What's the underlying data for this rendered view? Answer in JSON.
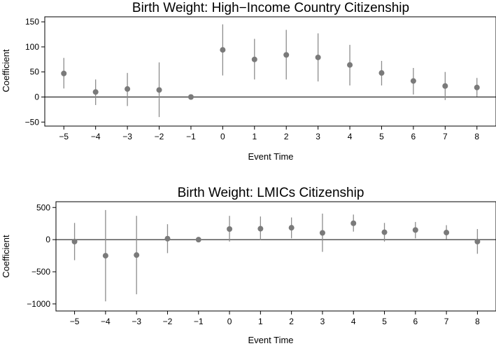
{
  "chart_data": [
    {
      "type": "scatter",
      "title": "Birth Weight: High−Income Country Citizenship",
      "xlabel": "Event Time",
      "ylabel": "Coefficient",
      "x": [
        -5,
        -4,
        -3,
        -2,
        -1,
        0,
        1,
        2,
        3,
        4,
        5,
        6,
        7,
        8
      ],
      "x_tick_labels": [
        "−5",
        "−4",
        "−3",
        "−2",
        "−1",
        "0",
        "1",
        "2",
        "3",
        "4",
        "5",
        "6",
        "7",
        "8"
      ],
      "series": [
        {
          "values": [
            47,
            10,
            16,
            14,
            0,
            94,
            75,
            84,
            79,
            64,
            48,
            32,
            22,
            19
          ],
          "ci_lower": [
            17,
            -16,
            -18,
            -40,
            0,
            43,
            35,
            35,
            31,
            23,
            23,
            5,
            -6,
            1
          ],
          "ci_upper": [
            78,
            35,
            48,
            69,
            0,
            145,
            116,
            134,
            127,
            104,
            72,
            58,
            50,
            38
          ]
        }
      ],
      "xlim": [
        -5.6,
        8.6
      ],
      "ylim": [
        -58,
        160
      ],
      "y_ticks": [
        -50,
        0,
        50,
        100,
        150
      ],
      "y_tick_labels": [
        "−50",
        "0",
        "50",
        "100",
        "150"
      ],
      "reference_line_y": 0,
      "grid": false,
      "colors": {
        "marker": "#7a7a7a",
        "ci": "#8c8c8c"
      }
    },
    {
      "type": "scatter",
      "title": "Birth Weight: LMICs Citizenship",
      "xlabel": "Event Time",
      "ylabel": "Coefficient",
      "x": [
        -5,
        -4,
        -3,
        -2,
        -1,
        0,
        1,
        2,
        3,
        4,
        5,
        6,
        7,
        8
      ],
      "x_tick_labels": [
        "−5",
        "−4",
        "−3",
        "−2",
        "−1",
        "0",
        "1",
        "2",
        "3",
        "4",
        "5",
        "6",
        "7",
        "8"
      ],
      "series": [
        {
          "values": [
            -30,
            -250,
            -240,
            15,
            0,
            165,
            170,
            185,
            105,
            255,
            115,
            150,
            110,
            -30
          ],
          "ci_lower": [
            -320,
            -960,
            -850,
            -210,
            0,
            -30,
            -10,
            20,
            -190,
            125,
            -30,
            20,
            5,
            -220
          ],
          "ci_upper": [
            260,
            460,
            370,
            240,
            0,
            370,
            360,
            345,
            405,
            390,
            260,
            275,
            225,
            165
          ]
        }
      ],
      "xlim": [
        -5.6,
        8.6
      ],
      "ylim": [
        -1110,
        590
      ],
      "y_ticks": [
        -1000,
        -500,
        0,
        500
      ],
      "y_tick_labels": [
        "−1000",
        "−500",
        "0",
        "500"
      ],
      "reference_line_y": 0,
      "grid": false,
      "colors": {
        "marker": "#7a7a7a",
        "ci": "#8c8c8c"
      }
    }
  ]
}
